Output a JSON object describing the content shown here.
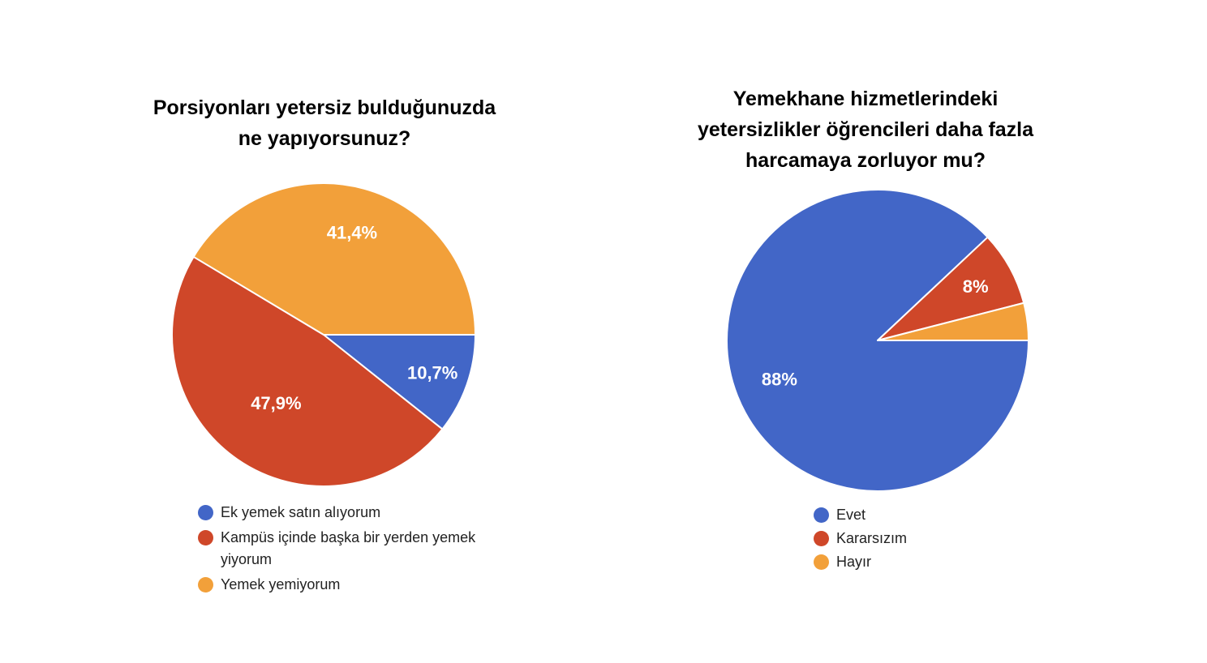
{
  "colors": {
    "blue": "#4266c7",
    "red": "#cf4729",
    "orange": "#f2a03a"
  },
  "chart_data": [
    {
      "type": "pie",
      "title": "Porsiyonları yetersiz bulduğunuzda\nne yapıyorsunuz?",
      "categories": [
        "Ek yemek satın alıyorum",
        "Kampüs içinde başka bir yerden yemek yiyorum",
        "Yemek yemiyorum"
      ],
      "values": [
        10.7,
        47.9,
        41.4
      ],
      "value_labels": [
        "10,7%",
        "47,9%",
        "41,4%"
      ],
      "colors": [
        "#4266c7",
        "#cf4729",
        "#f2a03a"
      ],
      "legend_position": "bottom"
    },
    {
      "type": "pie",
      "title": "Yemekhane hizmetlerindeki\nyetersizlikler öğrencileri daha fazla\nharcamaya zorluyor mu?",
      "categories": [
        "Evet",
        "Kararsızım",
        "Hayır"
      ],
      "values": [
        88,
        8,
        4
      ],
      "value_labels": [
        "88%",
        "8%",
        ""
      ],
      "colors": [
        "#4266c7",
        "#cf4729",
        "#f2a03a"
      ],
      "legend_position": "bottom"
    }
  ]
}
